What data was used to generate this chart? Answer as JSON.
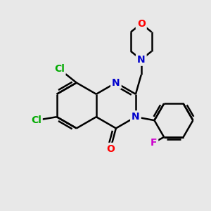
{
  "background_color": "#e8e8e8",
  "line_color": "black",
  "line_width": 1.8,
  "atom_colors": {
    "N": "#0000cc",
    "O_morph": "#ff0000",
    "O_carbonyl": "#ff0000",
    "Cl": "#00aa00",
    "F": "#cc00cc"
  },
  "font_size": 10,
  "fig_size": [
    3.0,
    3.0
  ],
  "dpi": 100
}
